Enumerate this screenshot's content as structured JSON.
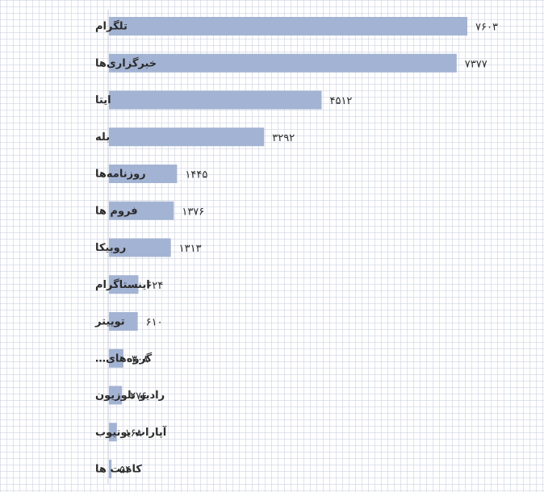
{
  "chart_data": {
    "type": "bar",
    "orientation": "horizontal",
    "categories": [
      "تلگرام",
      "خبرگزاری‌ها",
      "ایتا",
      "بله",
      "روزنامه‌ها",
      "فروم ها",
      "روبیکا",
      "اینستاگرام",
      "توییتر",
      "گروه‌های…",
      "رادیو تلوزیون",
      "آپارات یوتیوب",
      "کامنت ها"
    ],
    "values": [
      7603,
      7377,
      4512,
      3292,
      1445,
      1376,
      1313,
      624,
      610,
      308,
      276,
      168,
      54
    ],
    "value_labels": [
      "۷۶۰۳",
      "۷۳۷۷",
      "۴۵۱۲",
      "۳۲۹۲",
      "۱۴۴۵",
      "۱۳۷۶",
      "۱۳۱۳",
      "۶۲۴",
      "۶۱۰",
      "۳۰۸",
      "۲۷۶",
      "۱۶۸",
      "۵۴"
    ],
    "xlim": [
      0,
      7603
    ],
    "grid": true,
    "bar_color": "#a3b3d3"
  }
}
